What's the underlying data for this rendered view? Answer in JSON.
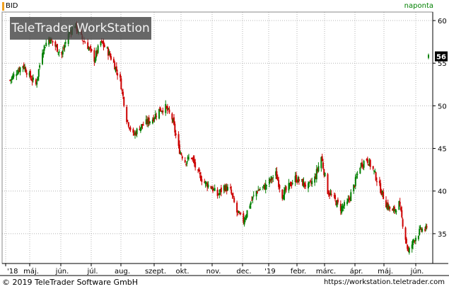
{
  "header": {
    "symbol": "BID",
    "period": "naponta"
  },
  "watermark": "TeleTrader WorkStation",
  "footer": {
    "copyright": "© 2019 TeleTrader Software GmbH",
    "website": "https://workstation.teletrader.com"
  },
  "last_price_badge": "56",
  "colors": {
    "up": "#008000",
    "down": "#cc0000",
    "grid": "#b4b4b4",
    "badge": "#000000"
  },
  "chart_data": {
    "type": "candlestick",
    "ylim": [
      31.5,
      61
    ],
    "yticks": [
      35,
      40,
      45,
      50,
      55,
      60
    ],
    "x_labels": [
      "'18",
      "máj.",
      "jún.",
      "júl.",
      "aug.",
      "szept.",
      "okt.",
      "nov.",
      "dec.",
      "'19",
      "febr.",
      "márc.",
      "ápr.",
      "máj.",
      "jún."
    ],
    "close_path": [
      [
        "2018-04-02",
        53.0
      ],
      [
        "2018-04-09",
        54.0
      ],
      [
        "2018-04-16",
        54.8
      ],
      [
        "2018-04-23",
        53.5
      ],
      [
        "2018-04-30",
        52.5
      ],
      [
        "2018-05-07",
        56.5
      ],
      [
        "2018-05-14",
        58.0
      ],
      [
        "2018-05-21",
        57.0
      ],
      [
        "2018-05-28",
        56.0
      ],
      [
        "2018-06-04",
        58.5
      ],
      [
        "2018-06-11",
        59.5
      ],
      [
        "2018-06-18",
        58.0
      ],
      [
        "2018-06-25",
        57.0
      ],
      [
        "2018-07-02",
        55.5
      ],
      [
        "2018-07-09",
        57.5
      ],
      [
        "2018-07-16",
        56.5
      ],
      [
        "2018-07-23",
        55.0
      ],
      [
        "2018-07-30",
        53.0
      ],
      [
        "2018-08-06",
        48.5
      ],
      [
        "2018-08-13",
        46.5
      ],
      [
        "2018-08-20",
        47.5
      ],
      [
        "2018-08-27",
        48.0
      ],
      [
        "2018-09-03",
        48.5
      ],
      [
        "2018-09-10",
        49.5
      ],
      [
        "2018-09-17",
        49.8
      ],
      [
        "2018-09-24",
        48.5
      ],
      [
        "2018-10-01",
        45.0
      ],
      [
        "2018-10-08",
        43.5
      ],
      [
        "2018-10-15",
        44.0
      ],
      [
        "2018-10-22",
        42.0
      ],
      [
        "2018-10-29",
        41.0
      ],
      [
        "2018-11-05",
        40.5
      ],
      [
        "2018-11-12",
        39.5
      ],
      [
        "2018-11-19",
        40.5
      ],
      [
        "2018-11-26",
        40.0
      ],
      [
        "2018-12-03",
        37.5
      ],
      [
        "2018-12-10",
        36.5
      ],
      [
        "2018-12-17",
        38.5
      ],
      [
        "2018-12-24",
        40.0
      ],
      [
        "2019-01-02",
        40.5
      ],
      [
        "2019-01-14",
        42.0
      ],
      [
        "2019-01-21",
        39.5
      ],
      [
        "2019-01-28",
        40.5
      ],
      [
        "2019-02-04",
        41.5
      ],
      [
        "2019-02-11",
        41.0
      ],
      [
        "2019-02-18",
        40.5
      ],
      [
        "2019-02-25",
        41.5
      ],
      [
        "2019-03-04",
        44.0
      ],
      [
        "2019-03-11",
        40.0
      ],
      [
        "2019-03-18",
        39.0
      ],
      [
        "2019-03-25",
        38.0
      ],
      [
        "2019-04-01",
        38.5
      ],
      [
        "2019-04-08",
        40.5
      ],
      [
        "2019-04-15",
        43.0
      ],
      [
        "2019-04-22",
        43.8
      ],
      [
        "2019-04-29",
        42.5
      ],
      [
        "2019-05-06",
        40.5
      ],
      [
        "2019-05-13",
        38.5
      ],
      [
        "2019-05-20",
        37.5
      ],
      [
        "2019-05-27",
        38.5
      ],
      [
        "2019-06-03",
        34.5
      ],
      [
        "2019-06-06",
        32.8
      ],
      [
        "2019-06-13",
        34.5
      ],
      [
        "2019-06-20",
        35.5
      ],
      [
        "2019-06-27",
        35.5
      ]
    ],
    "last_point": [
      "2019-07-05",
      55.8
    ]
  }
}
